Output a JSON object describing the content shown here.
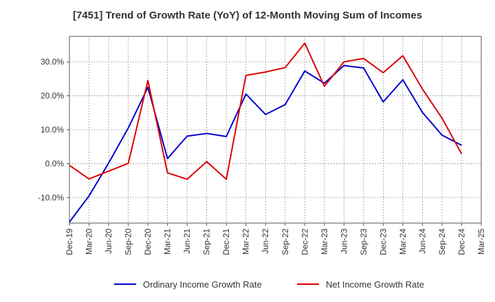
{
  "chart_data": {
    "type": "line",
    "title": "[7451]  Trend of Growth Rate (YoY) of 12-Month Moving Sum of Incomes",
    "xlabel": "",
    "ylabel": "",
    "x": [
      "Dec-19",
      "Mar-20",
      "Jun-20",
      "Sep-20",
      "Dec-20",
      "Mar-21",
      "Jun-21",
      "Sep-21",
      "Dec-21",
      "Mar-22",
      "Jun-22",
      "Sep-22",
      "Dec-22",
      "Mar-23",
      "Jun-23",
      "Sep-23",
      "Dec-23",
      "Mar-24",
      "Jun-24",
      "Sep-24",
      "Dec-24",
      "Mar-25"
    ],
    "ylim": [
      -17.5,
      37.5
    ],
    "y_ticks": [
      30,
      20,
      10,
      0,
      -10
    ],
    "y_tick_labels": [
      "30.0%",
      "20.0%",
      "10.0%",
      "0.0%",
      "-10.0%"
    ],
    "grid": true,
    "legend_position": "bottom",
    "series": [
      {
        "name": "Ordinary Income Growth Rate",
        "color": "#0000cc",
        "values": [
          -17.2,
          -9.5,
          0.2,
          10.5,
          22.5,
          1.5,
          8.1,
          8.9,
          8.0,
          20.5,
          14.5,
          17.4,
          27.3,
          23.7,
          28.9,
          28.2,
          18.2,
          24.7,
          15.1,
          8.4,
          5.4,
          null
        ]
      },
      {
        "name": "Net Income Growth Rate",
        "color": "#dd0000",
        "values": [
          -0.5,
          -4.5,
          -2.2,
          0.1,
          24.5,
          -2.7,
          -4.6,
          0.6,
          -4.6,
          26.0,
          27.0,
          28.3,
          35.5,
          22.8,
          30.0,
          31.0,
          26.8,
          31.8,
          22.0,
          13.4,
          2.9,
          null
        ]
      }
    ]
  }
}
